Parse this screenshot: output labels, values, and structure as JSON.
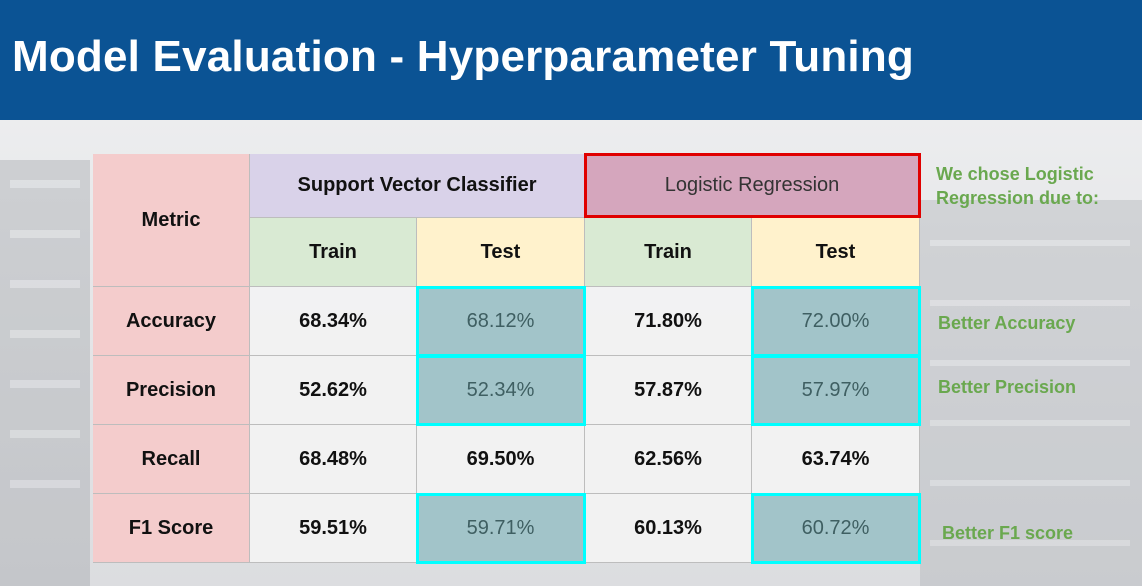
{
  "slide": {
    "title": "Model Evaluation - Hyperparameter Tuning"
  },
  "table": {
    "metric_header": "Metric",
    "svc_header": "Support Vector Classifier",
    "lr_header": "Logistic Regression",
    "train_label": "Train",
    "test_label": "Test",
    "rows": [
      {
        "metric": "Accuracy",
        "svc_train": "68.34%",
        "svc_test": "68.12%",
        "lr_train": "71.80%",
        "lr_test": "72.00%"
      },
      {
        "metric": "Precision",
        "svc_train": "52.62%",
        "svc_test": "52.34%",
        "lr_train": "57.87%",
        "lr_test": "57.97%"
      },
      {
        "metric": "Recall",
        "svc_train": "68.48%",
        "svc_test": "69.50%",
        "lr_train": "62.56%",
        "lr_test": "63.74%"
      },
      {
        "metric": "F1 Score",
        "svc_train": "59.51%",
        "svc_test": "59.71%",
        "lr_train": "60.13%",
        "lr_test": "60.72%"
      }
    ]
  },
  "notes": {
    "intro": "We chose Logistic Regression due to:",
    "accuracy": "Better Accuracy",
    "precision": "Better Precision",
    "f1": "Better F1 score"
  },
  "colors": {
    "header_bg": "#0b5394",
    "highlight_border": "#00ffff",
    "selected_border": "#e00000",
    "note_text": "#6aa84f"
  }
}
